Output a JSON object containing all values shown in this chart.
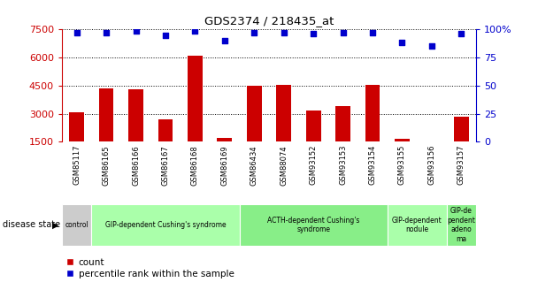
{
  "title": "GDS2374 / 218435_at",
  "samples": [
    "GSM85117",
    "GSM86165",
    "GSM86166",
    "GSM86167",
    "GSM86168",
    "GSM86169",
    "GSM86434",
    "GSM88074",
    "GSM93152",
    "GSM93153",
    "GSM93154",
    "GSM93155",
    "GSM93156",
    "GSM93157"
  ],
  "counts": [
    3050,
    4350,
    4300,
    2700,
    6100,
    1700,
    4500,
    4550,
    3150,
    3380,
    4550,
    1650,
    1450,
    2850
  ],
  "percentile": [
    97,
    97,
    98,
    94,
    98,
    90,
    97,
    97,
    96,
    97,
    97,
    88,
    85,
    96
  ],
  "bar_color": "#cc0000",
  "dot_color": "#0000cc",
  "ylim_left": [
    1500,
    7500
  ],
  "ylim_right": [
    0,
    100
  ],
  "yticks_left": [
    1500,
    3000,
    4500,
    6000,
    7500
  ],
  "yticks_right": [
    0,
    25,
    50,
    75,
    100
  ],
  "yticklabels_right": [
    "0",
    "25",
    "50",
    "75",
    "100%"
  ],
  "disease_groups": [
    {
      "label": "control",
      "start": 0,
      "end": 1,
      "color": "#cccccc"
    },
    {
      "label": "GIP-dependent Cushing's syndrome",
      "start": 1,
      "end": 6,
      "color": "#aaffaa"
    },
    {
      "label": "ACTH-dependent Cushing's\nsyndrome",
      "start": 6,
      "end": 11,
      "color": "#88ee88"
    },
    {
      "label": "GIP-dependent\nnodule",
      "start": 11,
      "end": 13,
      "color": "#aaffaa"
    },
    {
      "label": "GIP-de\npendent\nadeno\nma",
      "start": 13,
      "end": 14,
      "color": "#88ee88"
    }
  ],
  "legend_items": [
    {
      "label": "count",
      "color": "#cc0000"
    },
    {
      "label": "percentile rank within the sample",
      "color": "#0000cc"
    }
  ],
  "tick_label_color_left": "#cc0000",
  "tick_label_color_right": "#0000cc",
  "sample_bg_color": "#cccccc",
  "sample_line_color": "#ffffff",
  "background_color": "#ffffff"
}
